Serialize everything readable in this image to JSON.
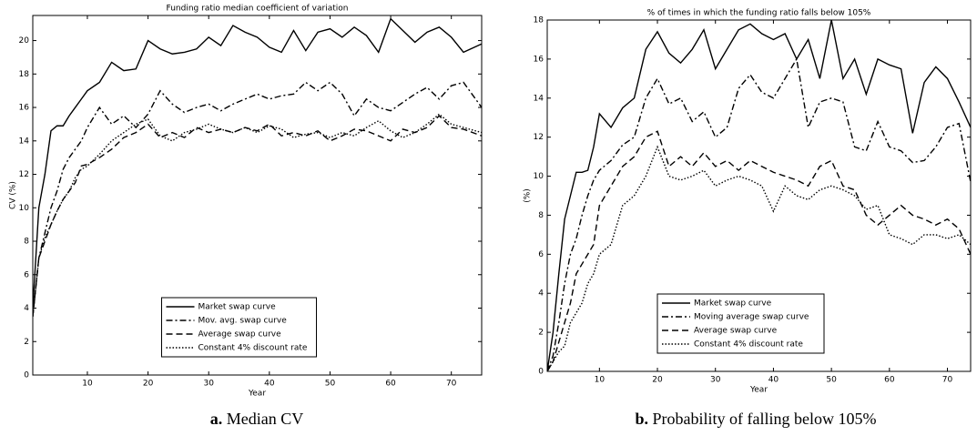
{
  "chart_data": [
    {
      "type": "line",
      "title": "Funding ratio median coefficient of variation",
      "xlabel": "Year",
      "ylabel": "CV (%)",
      "caption_label": "a.",
      "caption": "Median CV",
      "x": [
        1,
        2,
        3,
        4,
        5,
        6,
        7,
        8,
        9,
        10,
        12,
        14,
        16,
        18,
        20,
        22,
        24,
        26,
        28,
        30,
        32,
        34,
        36,
        38,
        40,
        42,
        44,
        46,
        48,
        50,
        52,
        54,
        56,
        58,
        60,
        62,
        64,
        66,
        68,
        70,
        72,
        75
      ],
      "series": [
        {
          "name": "Market swap curve",
          "color": "#000000",
          "linestyle": "solid",
          "values": [
            4,
            10,
            12,
            14.6,
            14.9,
            14.9,
            15.5,
            16,
            16.5,
            17,
            17.5,
            18.7,
            18.2,
            18.3,
            20,
            19.5,
            19.2,
            19.3,
            19.5,
            20.2,
            19.7,
            20.9,
            20.5,
            20.2,
            19.6,
            19.3,
            20.6,
            19.4,
            20.5,
            20.7,
            20.2,
            20.8,
            20.3,
            19.3,
            21.3,
            20.6,
            19.9,
            20.5,
            20.8,
            20.2,
            19.3,
            19.8
          ]
        },
        {
          "name": "Mov. avg. swap curve",
          "color": "#000000",
          "linestyle": "dashdot",
          "values": [
            3.5,
            7,
            8.5,
            10,
            11,
            12.3,
            13,
            13.5,
            14,
            14.8,
            16,
            15,
            15.5,
            14.8,
            15.6,
            17,
            16.2,
            15.7,
            16,
            16.2,
            15.8,
            16.2,
            16.5,
            16.8,
            16.5,
            16.7,
            16.8,
            17.5,
            17,
            17.5,
            16.8,
            15.5,
            16.5,
            16,
            15.8,
            16.3,
            16.8,
            17.2,
            16.5,
            17.3,
            17.5,
            16
          ]
        },
        {
          "name": "Average swap curve",
          "color": "#000000",
          "linestyle": "dashed",
          "values": [
            3.5,
            7,
            8,
            9,
            9.8,
            10.5,
            11,
            11.5,
            12.5,
            12.6,
            13,
            13.5,
            14.2,
            14.5,
            15,
            14.2,
            14.5,
            14.2,
            14.8,
            14.5,
            14.7,
            14.5,
            14.8,
            14.6,
            15,
            14.3,
            14.5,
            14.3,
            14.6,
            14,
            14.3,
            14.7,
            14.6,
            14.3,
            14,
            14.7,
            14.5,
            14.8,
            15.5,
            14.8,
            14.7,
            14.3
          ]
        },
        {
          "name": "Constant 4% discount rate",
          "color": "#000000",
          "linestyle": "dotted",
          "values": [
            3.5,
            7,
            8.2,
            9,
            9.8,
            10.5,
            11,
            11.8,
            12.3,
            12.5,
            13.2,
            14,
            14.5,
            15,
            15.3,
            14.3,
            14,
            14.5,
            14.7,
            15,
            14.7,
            14.5,
            14.8,
            14.5,
            14.9,
            14.7,
            14.2,
            14.4,
            14.5,
            14.2,
            14.5,
            14.3,
            14.8,
            15.2,
            14.6,
            14.2,
            14.5,
            15,
            15.6,
            15,
            14.8,
            14.5
          ]
        }
      ],
      "xlim": [
        1,
        75
      ],
      "xticks": [
        10,
        20,
        30,
        40,
        50,
        60,
        70
      ],
      "ylim": [
        0,
        21.5
      ],
      "yticks": [
        0,
        2,
        4,
        6,
        8,
        10,
        12,
        14,
        16,
        18,
        20
      ],
      "legend": "lower center"
    },
    {
      "type": "line",
      "title": "% of times in which the funding ratio falls below 105%",
      "xlabel": "Year",
      "ylabel": "(%)",
      "caption_label": "b.",
      "caption": "Probability of falling below 105%",
      "x": [
        1,
        2,
        3,
        4,
        5,
        6,
        7,
        8,
        9,
        10,
        12,
        14,
        16,
        18,
        20,
        22,
        24,
        26,
        28,
        30,
        32,
        34,
        36,
        38,
        40,
        42,
        44,
        46,
        48,
        50,
        52,
        54,
        56,
        58,
        60,
        62,
        64,
        66,
        68,
        70,
        72,
        74
      ],
      "series": [
        {
          "name": "Market swap curve",
          "color": "#000000",
          "linestyle": "solid",
          "values": [
            0,
            2,
            5,
            7.8,
            9,
            10.2,
            10.2,
            10.3,
            11.5,
            13.2,
            12.5,
            13.5,
            14,
            16.5,
            17.4,
            16.3,
            15.8,
            16.5,
            17.5,
            15.5,
            16.5,
            17.5,
            17.8,
            17.3,
            17,
            17.3,
            16,
            17,
            15,
            18,
            15,
            16,
            14.2,
            16,
            15.7,
            15.5,
            12.2,
            14.8,
            15.6,
            15,
            13.8,
            12.5
          ]
        },
        {
          "name": "Moving average swap curve",
          "color": "#000000",
          "linestyle": "dashdot",
          "values": [
            0,
            0.8,
            2.5,
            4.5,
            6,
            6.8,
            8,
            9,
            9.8,
            10.3,
            10.8,
            11.6,
            12,
            14,
            15,
            13.7,
            14,
            12.8,
            13.3,
            12,
            12.5,
            14.5,
            15.2,
            14.3,
            14,
            15,
            16,
            12.5,
            13.8,
            14,
            13.8,
            11.5,
            11.3,
            12.8,
            11.5,
            11.3,
            10.7,
            10.8,
            11.5,
            12.5,
            12.7,
            9.7
          ]
        },
        {
          "name": "Average swap curve",
          "color": "#000000",
          "linestyle": "dashed",
          "values": [
            0,
            0.5,
            1.5,
            2.5,
            3.5,
            5,
            5.5,
            6,
            6.5,
            8.5,
            9.5,
            10.5,
            11,
            12,
            12.3,
            10.5,
            11,
            10.5,
            11.2,
            10.5,
            10.8,
            10.3,
            10.8,
            10.5,
            10.2,
            10,
            9.8,
            9.5,
            10.5,
            10.8,
            9.5,
            9.3,
            8,
            7.5,
            8,
            8.5,
            8,
            7.8,
            7.5,
            7.8,
            7.3,
            6
          ]
        },
        {
          "name": "Constant 4% discount rate",
          "color": "#000000",
          "linestyle": "dotted",
          "values": [
            0,
            0.5,
            1,
            1.3,
            2.5,
            3,
            3.5,
            4.5,
            5,
            6,
            6.5,
            8.5,
            9,
            10,
            11.5,
            10,
            9.8,
            10,
            10.3,
            9.5,
            9.8,
            10,
            9.8,
            9.5,
            8.2,
            9.5,
            9,
            8.8,
            9.3,
            9.5,
            9.3,
            9,
            8.3,
            8.5,
            7,
            6.8,
            6.5,
            7,
            7,
            6.8,
            7,
            6.5
          ]
        }
      ],
      "xlim": [
        1,
        74
      ],
      "xticks": [
        10,
        20,
        30,
        40,
        50,
        60,
        70
      ],
      "ylim": [
        0,
        18
      ],
      "yticks": [
        0,
        2,
        4,
        6,
        8,
        10,
        12,
        14,
        16,
        18
      ],
      "legend": "lower center"
    }
  ]
}
